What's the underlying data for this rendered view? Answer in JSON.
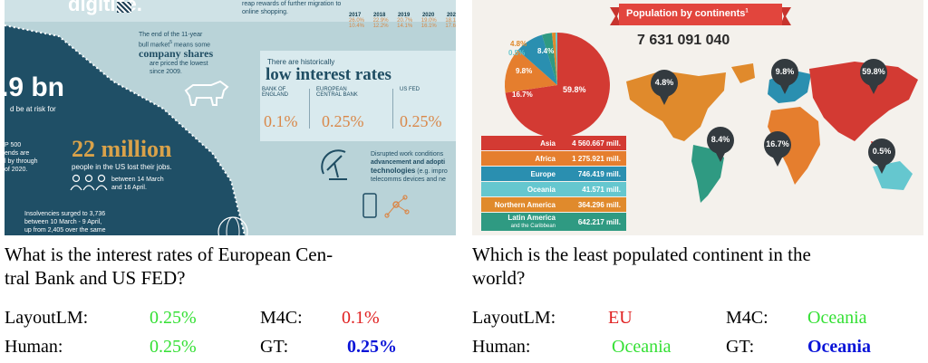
{
  "left": {
    "header_fragment": "digitize.",
    "top_text": "reap rewards of further migration to online shopping.",
    "year_table": {
      "years": [
        "2017",
        "2018",
        "2019",
        "2020",
        "202"
      ],
      "row1": [
        "26.0%",
        "22.9%",
        "20.7%",
        "19.0%",
        "18.1"
      ],
      "row2": [
        "10.4%",
        "12.2%",
        "14.1%",
        "16.1%",
        "17.6"
      ]
    },
    "bull_text_1": "The end of the 11-year",
    "bull_text_2": "bull market",
    "bull_text_3": "means some",
    "company_shares": "company shares",
    "bull_text_4": "are priced the lowest",
    "bull_text_5": "since 2009.",
    "big_number": ".9 bn",
    "at_risk": "d be at risk for",
    "sp500_1": "P 500",
    "sp500_2": "ends are",
    "sp500_3": "l by through",
    "sp500_4": "of 2020.",
    "historically": "There are historically",
    "low_interest": "low interest rates",
    "boe_1": "BANK OF",
    "boe_2": "ENGLAND",
    "ecb_1": "EUROPEAN",
    "ecb_2": "CENTRAL BANK",
    "fed": "US FED",
    "rate_boe": "0.1%",
    "rate_ecb": "0.25%",
    "rate_fed": "0.25%",
    "millions": "22 million",
    "lost_jobs": "people in the US lost their jobs.",
    "between_1": "between 14 March",
    "between_2": "and 16 April.",
    "disrupted_1": "Disrupted work conditions",
    "disrupted_2": "advancement and adopti",
    "technologies": "technologies",
    "tech_eg": "(e.g. impro",
    "telecoms": "telecomms devices and ne",
    "insolv_1": "Insolvencies surged to 3,736",
    "insolv_2": "between 10 March - 9 April,",
    "insolv_3": "up from 2,405 over the same"
  },
  "right": {
    "title": "Population by continents",
    "title_sup": "1",
    "total": "7 631 091 040",
    "pie_labels": [
      "4.8%",
      "0.5%",
      "8.4%",
      "9.8%",
      "16.7%",
      "59.8%"
    ],
    "legend": [
      {
        "name": "Asia",
        "value": "4 560.667 mill.",
        "color": "#d33a33"
      },
      {
        "name": "Africa",
        "value": "1 275.921 mill.",
        "color": "#e57e2e"
      },
      {
        "name": "Europe",
        "value": "746.419 mill.",
        "color": "#2a8fb0"
      },
      {
        "name": "Oceania",
        "value": "41.571 mill.",
        "color": "#65c7cf"
      },
      {
        "name": "Northern America",
        "value": "364.296 mill.",
        "color": "#e08a2c"
      },
      {
        "name": "Latin America",
        "sub": "and the Caribbean",
        "value": "642.217 mill.",
        "color": "#2f9a82"
      }
    ],
    "map_pins": [
      "4.8%",
      "9.8%",
      "59.8%",
      "8.4%",
      "16.7%",
      "0.5%"
    ]
  },
  "captions": {
    "left": {
      "question": "What is the interest rates of European Central Bank and US FED?",
      "question_line1": "What is the interest rates of European Cen-",
      "question_line2": "tral Bank and US FED?",
      "layoutlm_label": "LayoutLM:",
      "layoutlm_value": "0.25%",
      "m4c_label": "M4C:",
      "m4c_value": "0.1%",
      "human_label": "Human:",
      "human_value": "0.25%",
      "gt_label": "GT:",
      "gt_value": "0.25%"
    },
    "right": {
      "question_line1": "Which is the least populated continent in the",
      "question_line2": "world?",
      "layoutlm_label": "LayoutLM:",
      "layoutlm_value": "EU",
      "m4c_label": "M4C:",
      "m4c_value": "Oceania",
      "human_label": "Human:",
      "human_value": "Oceania",
      "gt_label": "GT:",
      "gt_value": "Oceania"
    },
    "colors": {
      "correct": "#35e035",
      "wrong": "#e02020",
      "gt": "#0a14d8"
    }
  }
}
